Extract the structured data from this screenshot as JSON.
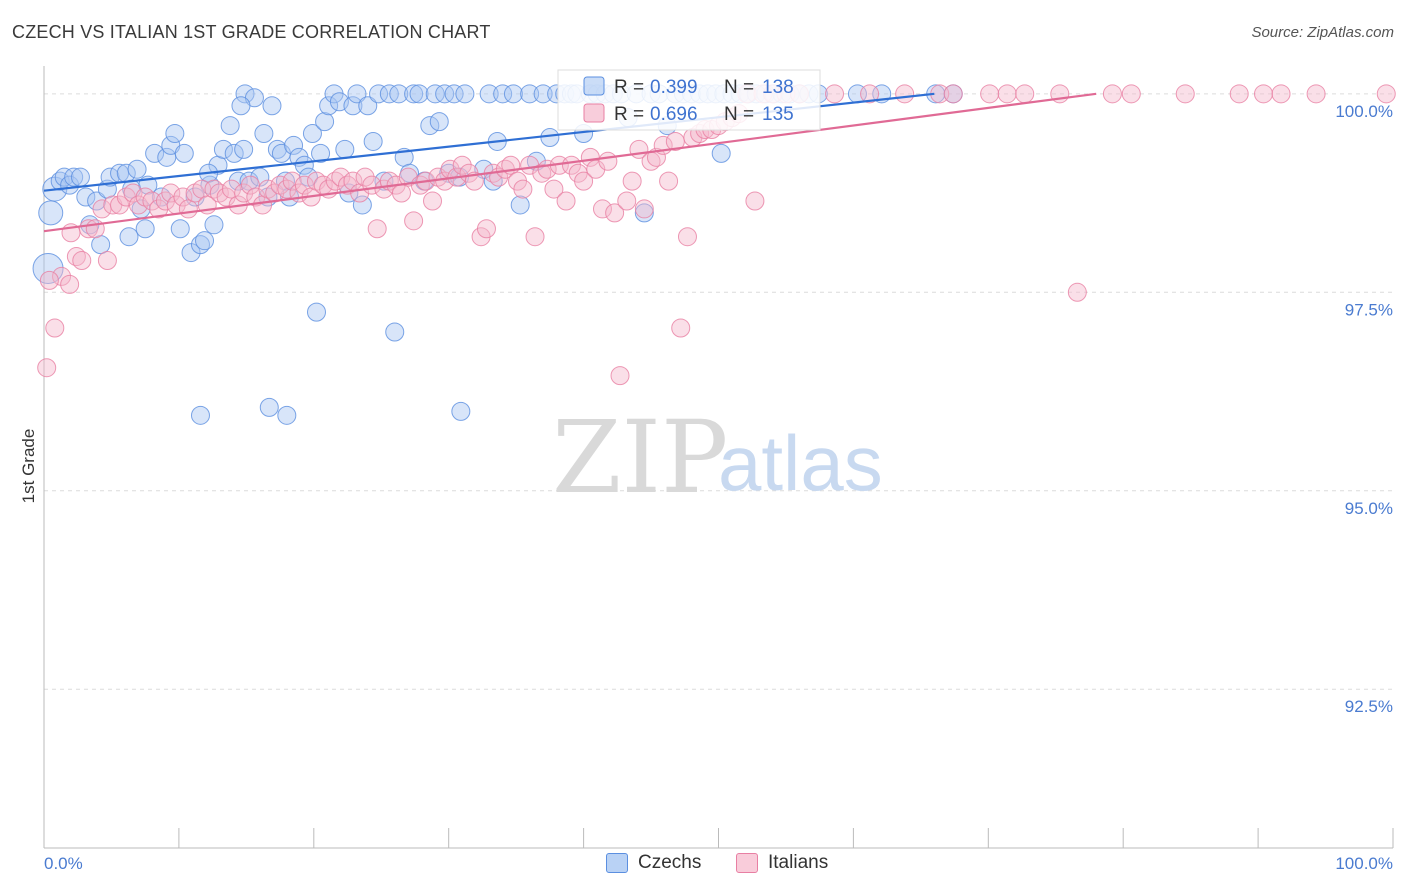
{
  "chart_data": {
    "type": "scatter",
    "title": "CZECH VS ITALIAN 1ST GRADE CORRELATION CHART",
    "source": "Source: ZipAtlas.com",
    "xlabel": "",
    "ylabel": "1st Grade",
    "xlim": [
      0,
      100
    ],
    "ylim": [
      90.5,
      100.3
    ],
    "x_tick_labels": [
      "0.0%",
      "100.0%"
    ],
    "y_ticks": [
      {
        "value": 100.0,
        "label": "100.0%"
      },
      {
        "value": 97.5,
        "label": "97.5%"
      },
      {
        "value": 95.0,
        "label": "95.0%"
      },
      {
        "value": 92.5,
        "label": "92.5%"
      }
    ],
    "watermark": {
      "part1": "ZIP",
      "part2": "atlas"
    },
    "legend": {
      "rows": [
        {
          "series": "Czechs",
          "r_label": "R = ",
          "r_value": "0.399",
          "n_label": "N = ",
          "n_value": "138"
        },
        {
          "series": "Italians",
          "r_label": "R = ",
          "r_value": "0.696",
          "n_label": "N = ",
          "n_value": "135"
        }
      ]
    },
    "series": [
      {
        "name": "Czechs",
        "color": "#5b8fe0",
        "fill": "#a9c6f2",
        "trend": {
          "x": [
            0,
            66
          ],
          "y": [
            98.78,
            100.0
          ]
        },
        "points": [
          [
            0.3,
            97.8
          ],
          [
            0.5,
            98.5
          ],
          [
            0.8,
            98.8
          ],
          [
            1.2,
            98.9
          ],
          [
            1.5,
            98.95
          ],
          [
            1.9,
            98.85
          ],
          [
            2.2,
            98.95
          ],
          [
            2.7,
            98.95
          ],
          [
            3.1,
            98.7
          ],
          [
            3.4,
            98.35
          ],
          [
            3.9,
            98.65
          ],
          [
            4.2,
            98.1
          ],
          [
            4.7,
            98.8
          ],
          [
            4.9,
            98.95
          ],
          [
            5.6,
            99.0
          ],
          [
            6.1,
            99.0
          ],
          [
            6.3,
            98.2
          ],
          [
            6.5,
            98.8
          ],
          [
            6.9,
            99.05
          ],
          [
            7.2,
            98.55
          ],
          [
            7.5,
            98.3
          ],
          [
            7.7,
            98.85
          ],
          [
            8.2,
            99.25
          ],
          [
            8.7,
            98.7
          ],
          [
            9.1,
            99.2
          ],
          [
            9.4,
            99.35
          ],
          [
            9.7,
            99.5
          ],
          [
            10.1,
            98.3
          ],
          [
            10.4,
            99.25
          ],
          [
            10.9,
            98.0
          ],
          [
            11.2,
            98.7
          ],
          [
            11.6,
            98.1
          ],
          [
            11.9,
            98.15
          ],
          [
            12.3,
            98.85
          ],
          [
            12.6,
            98.35
          ],
          [
            12.9,
            99.1
          ],
          [
            13.3,
            99.3
          ],
          [
            13.8,
            99.6
          ],
          [
            14.1,
            99.25
          ],
          [
            14.4,
            98.9
          ],
          [
            14.8,
            99.3
          ],
          [
            14.9,
            100.0
          ],
          [
            15.2,
            98.9
          ],
          [
            15.6,
            99.95
          ],
          [
            16.0,
            98.95
          ],
          [
            16.3,
            99.5
          ],
          [
            16.6,
            98.7
          ],
          [
            16.9,
            99.85
          ],
          [
            17.3,
            99.3
          ],
          [
            17.6,
            99.25
          ],
          [
            17.9,
            98.9
          ],
          [
            18.2,
            98.7
          ],
          [
            18.5,
            99.35
          ],
          [
            18.9,
            99.2
          ],
          [
            19.3,
            99.1
          ],
          [
            19.6,
            98.95
          ],
          [
            19.9,
            99.5
          ],
          [
            20.2,
            97.25
          ],
          [
            20.5,
            99.25
          ],
          [
            20.8,
            99.65
          ],
          [
            21.1,
            99.85
          ],
          [
            21.5,
            100.0
          ],
          [
            21.9,
            99.9
          ],
          [
            22.3,
            99.3
          ],
          [
            22.6,
            98.75
          ],
          [
            22.9,
            99.85
          ],
          [
            23.2,
            100.0
          ],
          [
            23.6,
            98.6
          ],
          [
            24.0,
            99.85
          ],
          [
            24.4,
            99.4
          ],
          [
            24.8,
            100.0
          ],
          [
            25.2,
            98.9
          ],
          [
            25.6,
            100.0
          ],
          [
            26.0,
            97.0
          ],
          [
            26.3,
            100.0
          ],
          [
            26.7,
            99.2
          ],
          [
            27.1,
            99.0
          ],
          [
            27.4,
            100.0
          ],
          [
            27.8,
            100.0
          ],
          [
            28.2,
            98.9
          ],
          [
            28.6,
            99.6
          ],
          [
            29.0,
            100.0
          ],
          [
            29.3,
            99.65
          ],
          [
            29.7,
            100.0
          ],
          [
            30.0,
            99.0
          ],
          [
            30.4,
            100.0
          ],
          [
            30.8,
            98.95
          ],
          [
            31.2,
            100.0
          ],
          [
            32.6,
            99.05
          ],
          [
            33.0,
            100.0
          ],
          [
            33.3,
            98.9
          ],
          [
            33.6,
            99.4
          ],
          [
            34.0,
            100.0
          ],
          [
            34.8,
            100.0
          ],
          [
            35.3,
            98.6
          ],
          [
            36.0,
            100.0
          ],
          [
            36.5,
            99.15
          ],
          [
            37.0,
            100.0
          ],
          [
            37.5,
            99.45
          ],
          [
            38.0,
            100.0
          ],
          [
            38.6,
            100.0
          ],
          [
            39.1,
            100.0
          ],
          [
            39.5,
            100.0
          ],
          [
            40.0,
            99.5
          ],
          [
            40.5,
            100.0
          ],
          [
            41.0,
            100.0
          ],
          [
            41.6,
            100.0
          ],
          [
            42.2,
            100.0
          ],
          [
            42.8,
            100.0
          ],
          [
            43.3,
            99.7
          ],
          [
            43.9,
            100.0
          ],
          [
            44.5,
            98.5
          ],
          [
            45.0,
            100.0
          ],
          [
            45.6,
            100.0
          ],
          [
            46.2,
            99.6
          ],
          [
            46.8,
            100.0
          ],
          [
            47.4,
            100.0
          ],
          [
            48.0,
            100.0
          ],
          [
            48.6,
            100.0
          ],
          [
            49.2,
            100.0
          ],
          [
            49.8,
            100.0
          ],
          [
            50.2,
            99.25
          ],
          [
            50.4,
            100.0
          ],
          [
            51.0,
            100.0
          ],
          [
            51.6,
            100.0
          ],
          [
            52.2,
            100.0
          ],
          [
            52.8,
            100.0
          ],
          [
            53.5,
            100.0
          ],
          [
            54.1,
            100.0
          ],
          [
            54.7,
            100.0
          ],
          [
            55.3,
            100.0
          ],
          [
            56.0,
            100.0
          ],
          [
            56.7,
            100.0
          ],
          [
            57.4,
            100.0
          ],
          [
            60.3,
            100.0
          ],
          [
            62.1,
            100.0
          ],
          [
            66.1,
            100.0
          ],
          [
            67.4,
            100.0
          ],
          [
            14.6,
            99.85
          ],
          [
            12.2,
            99.0
          ],
          [
            11.6,
            95.95
          ],
          [
            16.7,
            96.05
          ],
          [
            18.0,
            95.95
          ],
          [
            30.9,
            96.0
          ]
        ]
      },
      {
        "name": "Italians",
        "color": "#e87fa3",
        "fill": "#f5b8cc",
        "trend": {
          "x": [
            0,
            78
          ],
          "y": [
            98.27,
            100.0
          ]
        },
        "points": [
          [
            0.2,
            96.55
          ],
          [
            0.8,
            97.05
          ],
          [
            1.3,
            97.7
          ],
          [
            1.9,
            97.6
          ],
          [
            2.4,
            97.95
          ],
          [
            2.8,
            97.9
          ],
          [
            3.3,
            98.3
          ],
          [
            3.8,
            98.3
          ],
          [
            4.3,
            98.55
          ],
          [
            4.7,
            97.9
          ],
          [
            5.1,
            98.6
          ],
          [
            5.6,
            98.6
          ],
          [
            6.1,
            98.7
          ],
          [
            6.6,
            98.75
          ],
          [
            7.0,
            98.6
          ],
          [
            7.5,
            98.7
          ],
          [
            8.0,
            98.65
          ],
          [
            8.5,
            98.55
          ],
          [
            9.0,
            98.65
          ],
          [
            9.4,
            98.75
          ],
          [
            9.8,
            98.6
          ],
          [
            10.3,
            98.7
          ],
          [
            10.7,
            98.55
          ],
          [
            11.2,
            98.75
          ],
          [
            11.7,
            98.8
          ],
          [
            12.1,
            98.6
          ],
          [
            12.6,
            98.8
          ],
          [
            13.0,
            98.75
          ],
          [
            13.5,
            98.7
          ],
          [
            13.9,
            98.8
          ],
          [
            14.4,
            98.6
          ],
          [
            14.8,
            98.75
          ],
          [
            15.3,
            98.85
          ],
          [
            15.7,
            98.7
          ],
          [
            16.2,
            98.6
          ],
          [
            16.6,
            98.8
          ],
          [
            17.1,
            98.75
          ],
          [
            17.5,
            98.85
          ],
          [
            18.0,
            98.8
          ],
          [
            18.4,
            98.9
          ],
          [
            18.9,
            98.75
          ],
          [
            19.3,
            98.85
          ],
          [
            19.8,
            98.7
          ],
          [
            20.2,
            98.9
          ],
          [
            20.7,
            98.85
          ],
          [
            21.1,
            98.8
          ],
          [
            21.6,
            98.9
          ],
          [
            22.0,
            98.95
          ],
          [
            22.5,
            98.85
          ],
          [
            22.9,
            98.9
          ],
          [
            23.4,
            98.75
          ],
          [
            23.8,
            98.95
          ],
          [
            24.3,
            98.85
          ],
          [
            24.7,
            98.3
          ],
          [
            25.2,
            98.8
          ],
          [
            25.6,
            98.9
          ],
          [
            26.1,
            98.85
          ],
          [
            26.5,
            98.75
          ],
          [
            27.0,
            98.95
          ],
          [
            27.4,
            98.4
          ],
          [
            27.9,
            98.85
          ],
          [
            28.3,
            98.9
          ],
          [
            28.8,
            98.65
          ],
          [
            29.2,
            98.95
          ],
          [
            29.7,
            98.9
          ],
          [
            30.1,
            99.05
          ],
          [
            30.6,
            98.95
          ],
          [
            31.0,
            99.1
          ],
          [
            31.5,
            99.0
          ],
          [
            31.9,
            98.9
          ],
          [
            32.4,
            98.2
          ],
          [
            32.8,
            98.3
          ],
          [
            33.3,
            99.0
          ],
          [
            33.7,
            98.95
          ],
          [
            34.2,
            99.05
          ],
          [
            34.6,
            99.1
          ],
          [
            35.1,
            98.9
          ],
          [
            35.5,
            98.8
          ],
          [
            36.0,
            99.1
          ],
          [
            36.4,
            98.2
          ],
          [
            36.9,
            99.0
          ],
          [
            37.3,
            99.05
          ],
          [
            37.8,
            98.8
          ],
          [
            38.2,
            99.1
          ],
          [
            38.7,
            98.65
          ],
          [
            39.1,
            99.1
          ],
          [
            39.6,
            99.0
          ],
          [
            40.0,
            98.9
          ],
          [
            40.5,
            99.2
          ],
          [
            40.9,
            99.05
          ],
          [
            41.4,
            98.55
          ],
          [
            41.8,
            99.15
          ],
          [
            42.3,
            98.5
          ],
          [
            42.7,
            96.45
          ],
          [
            43.2,
            98.65
          ],
          [
            43.6,
            98.9
          ],
          [
            44.1,
            99.3
          ],
          [
            44.5,
            98.55
          ],
          [
            45.0,
            99.15
          ],
          [
            45.4,
            99.2
          ],
          [
            45.9,
            99.35
          ],
          [
            46.3,
            98.9
          ],
          [
            46.8,
            99.4
          ],
          [
            47.2,
            97.05
          ],
          [
            47.7,
            98.2
          ],
          [
            48.1,
            99.45
          ],
          [
            48.6,
            99.5
          ],
          [
            49.0,
            99.55
          ],
          [
            49.5,
            99.55
          ],
          [
            50.0,
            99.6
          ],
          [
            50.5,
            99.65
          ],
          [
            51.0,
            99.7
          ],
          [
            51.5,
            99.75
          ],
          [
            52.1,
            100.0
          ],
          [
            52.7,
            98.65
          ],
          [
            53.3,
            100.0
          ],
          [
            54.0,
            100.0
          ],
          [
            55.0,
            100.0
          ],
          [
            56.0,
            100.0
          ],
          [
            58.6,
            100.0
          ],
          [
            61.2,
            100.0
          ],
          [
            63.8,
            100.0
          ],
          [
            66.4,
            100.0
          ],
          [
            67.4,
            100.0
          ],
          [
            70.1,
            100.0
          ],
          [
            71.4,
            100.0
          ],
          [
            72.7,
            100.0
          ],
          [
            75.3,
            100.0
          ],
          [
            76.6,
            97.5
          ],
          [
            79.2,
            100.0
          ],
          [
            80.6,
            100.0
          ],
          [
            84.6,
            100.0
          ],
          [
            88.6,
            100.0
          ],
          [
            90.4,
            100.0
          ],
          [
            91.7,
            100.0
          ],
          [
            94.3,
            100.0
          ],
          [
            99.5,
            100.0
          ],
          [
            0.4,
            97.65
          ],
          [
            2.0,
            98.25
          ]
        ]
      }
    ]
  }
}
